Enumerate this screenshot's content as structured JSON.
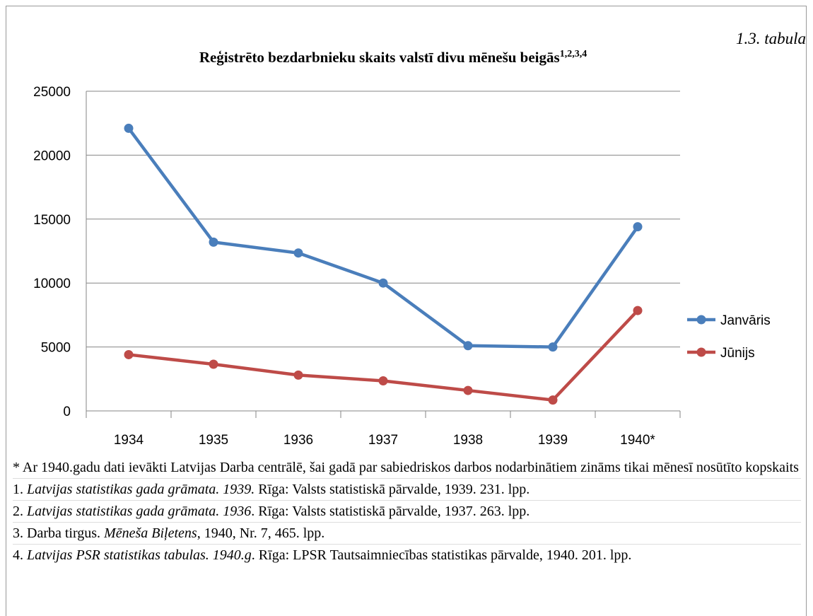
{
  "chart_data": {
    "type": "line",
    "title": "Reģistrēto bezdarbnieku skaits valstī divu mēnešu beigās",
    "title_superscript": "1,2,3,4",
    "subtitle": "1.3. tabula",
    "categories": [
      "1934",
      "1935",
      "1936",
      "1937",
      "1938",
      "1939",
      "1940*"
    ],
    "series": [
      {
        "name": "Janvāris",
        "color": "#4a7ebb",
        "values": [
          22100,
          13200,
          12350,
          10000,
          5100,
          5000,
          14400
        ]
      },
      {
        "name": "Jūnijs",
        "color": "#be4b48",
        "values": [
          4400,
          3650,
          2800,
          2350,
          1600,
          850,
          7850
        ]
      }
    ],
    "ylim": [
      0,
      25000
    ],
    "yticks": [
      0,
      5000,
      10000,
      15000,
      20000,
      25000
    ],
    "grid": true,
    "legend": "right"
  },
  "notes": [
    [
      {
        "text": "* Ar 1940.gadu dati ievākti Latvijas Darba centrālē, šai gadā par sabiedriskos darbos nodarbinātiem zināms tikai mēnesī nosūtīto kopskaits",
        "italic": false
      }
    ],
    [
      {
        "text": "1. ",
        "italic": false
      },
      {
        "text": "Latvijas statistikas gada grāmata. 1939.",
        "italic": true
      },
      {
        "text": " Rīga: Valsts statistiskā pārvalde, 1939. 231. lpp.",
        "italic": false
      }
    ],
    [
      {
        "text": "2. ",
        "italic": false
      },
      {
        "text": "Latvijas statistikas gada grāmata. 1936",
        "italic": true
      },
      {
        "text": ". Rīga: Valsts statistiskā pārvalde, 1937. 263. lpp.",
        "italic": false
      }
    ],
    [
      {
        "text": "3. Darba tirgus. ",
        "italic": false
      },
      {
        "text": "Mēneša Biļetens",
        "italic": true
      },
      {
        "text": ", 1940, Nr. 7, 465. lpp.",
        "italic": false
      }
    ],
    [
      {
        "text": "4. ",
        "italic": false
      },
      {
        "text": "Latvijas PSR statistikas tabulas. 1940.g",
        "italic": true
      },
      {
        "text": ". Rīga: LPSR Tautsaimniecības statistikas pārvalde, 1940. 201. lpp.",
        "italic": false
      }
    ]
  ]
}
